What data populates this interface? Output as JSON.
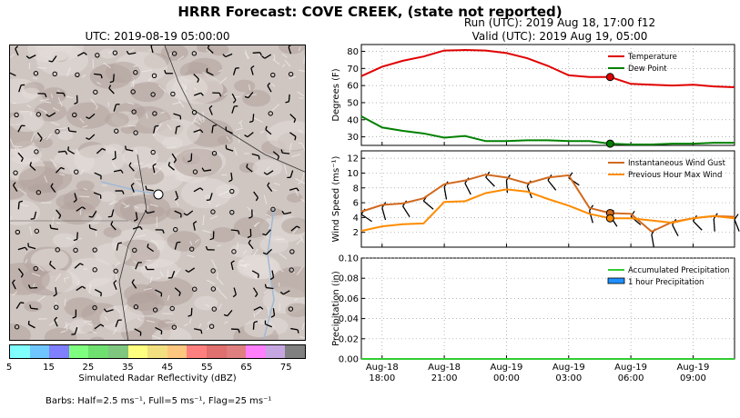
{
  "header": {
    "title": "HRRR Forecast: COVE CREEK, (state not reported)",
    "run": "Run (UTC): 2019 Aug 18, 17:00 f12",
    "valid": "Valid (UTC): 2019 Aug 19, 05:00"
  },
  "map": {
    "title": "UTC: 2019-08-19 05:00:00",
    "colorbar_label": "Simulated Radar Reflectivity (dBZ)",
    "colorbar_ticks": [
      "5",
      "15",
      "25",
      "35",
      "45",
      "55",
      "65",
      "75"
    ],
    "colorbar_colors": [
      "#7fffff",
      "#6fc6ff",
      "#7f7fff",
      "#7fff7f",
      "#6fdf6f",
      "#7fc67f",
      "#ffff7f",
      "#f2df7f",
      "#ffc67f",
      "#ff7f7f",
      "#e06f6f",
      "#df7f7f",
      "#ff7fff",
      "#c6a6e0",
      "#808080"
    ],
    "barbs_note": "Barbs: Half=2.5 ms⁻¹, Full=5 ms⁻¹, Flag=25 ms⁻¹"
  },
  "chart_data": [
    {
      "type": "line",
      "ylabel": "Degrees (F)",
      "ylim": [
        25,
        84
      ],
      "yticks": [
        "30",
        "40",
        "50",
        "60",
        "70",
        "80"
      ],
      "grid": true,
      "legend_position": "top-right",
      "series": [
        {
          "name": "Temperature",
          "color": "#e00000",
          "x": [
            0,
            1,
            2,
            3,
            4,
            5,
            6,
            7,
            8,
            9,
            10,
            11,
            12,
            13,
            14,
            15,
            16,
            17,
            18
          ],
          "values": [
            65.5,
            71,
            74.5,
            77,
            80.5,
            80.8,
            80.5,
            79,
            76,
            71.5,
            66,
            65,
            65,
            61,
            60.5,
            60,
            60.5,
            59.5,
            59
          ]
        },
        {
          "name": "Dew Point",
          "color": "#008000",
          "x": [
            0,
            1,
            2,
            3,
            4,
            5,
            6,
            7,
            8,
            9,
            10,
            11,
            12,
            13,
            14,
            15,
            16,
            17,
            18
          ],
          "values": [
            42,
            35.5,
            33.5,
            32,
            29.5,
            30.5,
            27.5,
            27.5,
            28,
            28,
            27.5,
            27.5,
            26,
            25.5,
            25.5,
            26,
            26,
            26.5,
            26.5
          ]
        }
      ],
      "marker_x": 12
    },
    {
      "type": "line",
      "ylabel": "Wind Speed (ms⁻¹)",
      "ylim": [
        0,
        13
      ],
      "yticks": [
        "2",
        "4",
        "6",
        "8",
        "10",
        "12"
      ],
      "grid": true,
      "legend_position": "top-right",
      "series": [
        {
          "name": "Instantaneous Wind Gust",
          "color": "#d2691e",
          "x": [
            0,
            1,
            2,
            3,
            4,
            5,
            6,
            7,
            8,
            9,
            10,
            11,
            12,
            13,
            14,
            15,
            16,
            17,
            18
          ],
          "values": [
            4.8,
            5.7,
            5.9,
            6.6,
            8.5,
            9,
            9.8,
            9.4,
            8.6,
            9.4,
            9.7,
            5.3,
            4.6,
            4.5,
            2.1,
            3.4,
            3.9,
            4.2,
            4.1
          ]
        },
        {
          "name": "Previous Hour Max Wind",
          "color": "#ff8c00",
          "x": [
            0,
            1,
            2,
            3,
            4,
            5,
            6,
            7,
            8,
            9,
            10,
            11,
            12,
            13,
            14,
            15,
            16,
            17,
            18
          ],
          "values": [
            2.2,
            2.8,
            3.1,
            3.2,
            6.1,
            6.2,
            7.3,
            7.8,
            7.5,
            6.5,
            5.6,
            4.5,
            3.9,
            3.9,
            3.6,
            3.3,
            3.9,
            4.2,
            3.9
          ]
        }
      ],
      "marker_x": 12
    },
    {
      "type": "line",
      "ylabel": "Precipitation (in)",
      "ylim": [
        0,
        0.1
      ],
      "yticks": [
        "0.00",
        "0.02",
        "0.04",
        "0.06",
        "0.08",
        "0.10"
      ],
      "grid": true,
      "legend_position": "top-right",
      "series": [
        {
          "name": "Accumulated Precipitation",
          "color": "#32cd32",
          "x": [
            0,
            18
          ],
          "values": [
            0,
            0
          ]
        },
        {
          "name": "1 hour Precipitation",
          "color": "#1e90ff",
          "x": [],
          "values": []
        }
      ],
      "marker_x": 12
    }
  ],
  "xaxis": {
    "range_hours": [
      0,
      18
    ],
    "ticks": [
      {
        "x": 1,
        "line1": "Aug-18",
        "line2": "18:00"
      },
      {
        "x": 4,
        "line1": "Aug-18",
        "line2": "21:00"
      },
      {
        "x": 7,
        "line1": "Aug-19",
        "line2": "00:00"
      },
      {
        "x": 10,
        "line1": "Aug-19",
        "line2": "03:00"
      },
      {
        "x": 13,
        "line1": "Aug-19",
        "line2": "06:00"
      },
      {
        "x": 16,
        "line1": "Aug-19",
        "line2": "09:00"
      }
    ]
  }
}
